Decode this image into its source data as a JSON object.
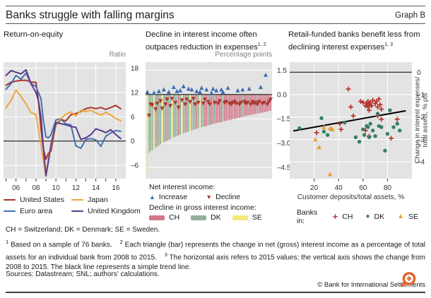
{
  "header": {
    "title": "Banks struggle with falling margins",
    "graph_label": "Graph B"
  },
  "panels": {
    "left": {
      "title": "Return-on-equity",
      "unit": "Ratio",
      "legend": [
        "United States",
        "Japan",
        "Euro area",
        "United Kingdom"
      ],
      "legend_color_keys": [
        "us_red",
        "japan_orange",
        "euro_blue",
        "uk_purple"
      ]
    },
    "middle": {
      "title_line1": "Decline in interest income often",
      "title_line2": "outpaces reduction in expenses",
      "title_sup": "1, 2",
      "unit": "Percentage points",
      "legend_net_title": "Net interest income:",
      "legend_increase": "Increase",
      "legend_decline": "Decline",
      "legend_gross_title": "Decline in gross interest income:",
      "legend_countries": [
        "CH",
        "DK",
        "SE"
      ]
    },
    "right": {
      "title_line1": "Retail-funded banks benefit less from",
      "title_line2": "declining interest expenses",
      "title_sup": "1, 3",
      "xlabel": "Customer deposits/total assets, %",
      "ylabel_line1": "Change in interest expenses/",
      "ylabel_line2": "total assets, % pts",
      "legend_prefix": "Banks in:",
      "legend": [
        "CH",
        "DK",
        "SE"
      ]
    }
  },
  "footer": {
    "abbr": "CH = Switzerland; DK = Denmark; SE = Sweden.",
    "fn1_marker": "1",
    "fn1": "Based on a sample of 76 banks.",
    "fn2_marker": "2",
    "fn2": "Each triangle (bar) represents the change in net (gross) interest income as a percentage of total assets for an individual bank from 2008 to 2015.",
    "fn3_marker": "3",
    "fn3": "The horizontal axis refers to 2015 values; the vertical axis shows the change from 2008 to 2015. The black line represents a simple trend line.",
    "sources": "Sources: Datastream; SNL; authors' calculations.",
    "copyright": "© Bank for International Settlements"
  },
  "colors": {
    "plot_bg": "#e3e3e3",
    "grid": "#ffffff",
    "axis": "#3c3c3c",
    "text": "#333333",
    "muted": "#7f7f7f",
    "us_red": "#a8352c",
    "euro_blue": "#4270b2",
    "japan_orange": "#eda63c",
    "uk_purple": "#5c3a8c",
    "bar_ch": "#d2798b",
    "bar_dk": "#91b19b",
    "bar_se": "#f4e87c",
    "tri_increase": "#3d6db5",
    "tri_decline": "#ab3a30",
    "scatter_ch": "#b5342c",
    "scatter_dk": "#338066",
    "scatter_se": "#e9a23b",
    "trend": "#000000",
    "zoom_icon": "#e8612c"
  },
  "chart_data": [
    {
      "type": "line",
      "name": "return-on-equity",
      "title": "Return-on-equity",
      "ylabel": "Ratio",
      "x_range": [
        2004.75,
        2017.0
      ],
      "y_range": [
        -9.3,
        19.5
      ],
      "x_gridlines": [
        2006,
        2008,
        2010,
        2012,
        2014,
        2016
      ],
      "x_ticks": [
        {
          "v": 2006,
          "label": "06"
        },
        {
          "v": 2008,
          "label": "08"
        },
        {
          "v": 2010,
          "label": "10"
        },
        {
          "v": 2012,
          "label": "12"
        },
        {
          "v": 2014,
          "label": "14"
        },
        {
          "v": 2016,
          "label": "16"
        }
      ],
      "x_minor_ticks": [
        2005,
        2006,
        2007,
        2008,
        2009,
        2010,
        2011,
        2012,
        2013,
        2014,
        2015,
        2016
      ],
      "y_ticks": [
        {
          "v": 18,
          "label": "18"
        },
        {
          "v": 12,
          "label": "12"
        },
        {
          "v": 6,
          "label": "6"
        },
        {
          "v": 0,
          "label": "0"
        },
        {
          "v": -6,
          "label": "–6"
        }
      ],
      "x": [
        2005,
        2005.5,
        2006,
        2006.5,
        2007,
        2007.5,
        2008,
        2008.25,
        2008.5,
        2008.75,
        2009,
        2009.25,
        2009.5,
        2010,
        2010.5,
        2011,
        2011.5,
        2012,
        2012.5,
        2013,
        2013.5,
        2014,
        2014.5,
        2015,
        2015.5,
        2016,
        2016.5
      ],
      "series": [
        {
          "name": "united-states",
          "label": "United States",
          "color_key": "us_red",
          "values": [
            13.8,
            14.5,
            14.8,
            15.0,
            15.0,
            14.6,
            14.5,
            10.0,
            3.0,
            -2.0,
            -4.5,
            -3.0,
            -2.5,
            4.0,
            5.3,
            5.0,
            6.5,
            6.8,
            7.3,
            8.0,
            8.3,
            8.0,
            8.3,
            7.8,
            8.3,
            8.8,
            8.0
          ]
        },
        {
          "name": "euro-area",
          "label": "Euro area",
          "color_key": "euro_blue",
          "values": [
            12.8,
            14.2,
            16.2,
            15.3,
            16.8,
            14.2,
            13.5,
            12.0,
            10.5,
            5.0,
            1.0,
            0.8,
            1.5,
            5.2,
            5.5,
            4.2,
            4.0,
            -1.2,
            -1.8,
            0.4,
            0.6,
            0.3,
            -1.3,
            1.2,
            2.0,
            2.6,
            2.4
          ]
        },
        {
          "name": "japan",
          "label": "Japan",
          "color_key": "japan_orange",
          "values": [
            8.2,
            10.0,
            12.6,
            11.0,
            9.2,
            7.0,
            6.6,
            3.0,
            -1.0,
            -5.0,
            -8.6,
            -4.0,
            -1.5,
            4.2,
            5.6,
            6.6,
            7.2,
            6.2,
            7.6,
            7.3,
            7.6,
            7.0,
            6.4,
            7.1,
            6.4,
            5.6,
            5.0
          ]
        },
        {
          "name": "united-kingdom",
          "label": "United Kingdom",
          "color_key": "uk_purple",
          "values": [
            16.2,
            17.4,
            17.0,
            16.6,
            17.6,
            14.2,
            12.0,
            10.0,
            6.0,
            -2.0,
            -8.6,
            -5.0,
            -1.0,
            4.6,
            4.3,
            4.0,
            3.6,
            3.4,
            0.4,
            0.8,
            1.6,
            3.0,
            2.6,
            2.1,
            2.8,
            1.6,
            0.6
          ]
        }
      ]
    },
    {
      "type": "bar-triangle",
      "name": "interest-income-decline",
      "ylabel": "Percentage points",
      "y_range": [
        -5.2,
        2.0
      ],
      "y_ticks": [
        {
          "v": 1.5,
          "label": "1.5"
        },
        {
          "v": 0.0,
          "label": "0.0"
        },
        {
          "v": -1.5,
          "label": "–1.5"
        },
        {
          "v": -3.0,
          "label": "–3.0"
        },
        {
          "v": -4.5,
          "label": "–4.5"
        }
      ],
      "bar_values": [
        -4.8,
        -3.6,
        -3.5,
        -3.45,
        -3.38,
        -3.3,
        -3.22,
        -3.15,
        -3.08,
        -3.02,
        -2.96,
        -2.9,
        -2.85,
        -2.8,
        -2.75,
        -2.7,
        -2.65,
        -2.6,
        -2.56,
        -2.52,
        -2.48,
        -2.44,
        -2.4,
        -2.36,
        -2.32,
        -2.28,
        -2.25,
        -2.22,
        -2.18,
        -2.15,
        -2.12,
        -2.08,
        -2.05,
        -2.02,
        -2.0,
        -1.97,
        -1.94,
        -1.91,
        -1.88,
        -1.85,
        -1.82,
        -1.8,
        -1.77,
        -1.74,
        -1.72,
        -1.7,
        -1.67,
        -1.64,
        -1.62,
        -1.6,
        -1.57,
        -1.55,
        -1.52,
        -1.5,
        -1.48,
        -1.45,
        -1.43,
        -1.4,
        -1.38,
        -1.35,
        -1.33,
        -1.3,
        -1.28,
        -1.26,
        -1.24,
        -1.22,
        -1.2,
        -1.18,
        -1.16,
        -1.14,
        -1.12,
        -1.1,
        -1.08,
        -1.05,
        -1.02,
        -1.0
      ],
      "bar_countries": [
        "SE",
        "DK",
        "DK",
        "DK",
        "SE",
        "DK",
        "CH",
        "DK",
        "DK",
        "SE",
        "DK",
        "DK",
        "CH",
        "DK",
        "DK",
        "SE",
        "DK",
        "DK",
        "DK",
        "CH",
        "DK",
        "SE",
        "DK",
        "DK",
        "CH",
        "DK",
        "SE",
        "DK",
        "DK",
        "DK",
        "CH",
        "DK",
        "SE",
        "DK",
        "DK",
        "CH",
        "CH",
        "DK",
        "CH",
        "CH",
        "CH",
        "DK",
        "CH",
        "CH",
        "CH",
        "CH",
        "DK",
        "CH",
        "CH",
        "CH",
        "CH",
        "CH",
        "CH",
        "CH",
        "CH",
        "CH",
        "CH",
        "CH",
        "DK",
        "CH",
        "CH",
        "CH",
        "CH",
        "CH",
        "CH",
        "CH",
        "CH",
        "DK",
        "CH",
        "CH",
        "CH",
        "CH",
        "CH",
        "CH",
        "CH",
        "CH"
      ],
      "net_values": [
        0.15,
        -1.3,
        -0.6,
        -0.65,
        0.1,
        -0.9,
        -0.55,
        0.2,
        -0.4,
        -0.85,
        0.3,
        -0.6,
        -0.3,
        0.15,
        -0.7,
        -0.25,
        0.45,
        -0.5,
        0.2,
        -0.8,
        0.25,
        -0.35,
        0.5,
        -0.6,
        -0.3,
        0.35,
        -0.45,
        0.3,
        -0.25,
        -0.6,
        0.2,
        -0.5,
        0.15,
        0.4,
        -0.55,
        -0.3,
        0.3,
        -0.45,
        -0.6,
        0.1,
        0.35,
        -0.5,
        0.25,
        -0.55,
        -0.4,
        0.3,
        0.15,
        -0.5,
        -0.45,
        0.4,
        -0.55,
        -0.6,
        -0.5,
        -0.45,
        -0.55,
        0.25,
        -0.6,
        -0.5,
        0.3,
        -0.45,
        -0.55,
        -0.5,
        0.35,
        -0.6,
        -0.45,
        -0.55,
        -0.5,
        -0.6,
        -0.45,
        0.45,
        -0.55,
        -0.5,
        1.2,
        -0.6,
        -0.45,
        -0.3
      ]
    },
    {
      "type": "scatter",
      "name": "retail-funding-scatter",
      "xlabel": "Customer deposits/total assets, %",
      "ylabel": "Change in interest expenses/ total assets, % pts",
      "x_range": [
        0,
        100
      ],
      "y_range": [
        -4.75,
        0.45
      ],
      "x_ticks": [
        {
          "v": 20,
          "label": "20"
        },
        {
          "v": 40,
          "label": "40"
        },
        {
          "v": 60,
          "label": "60"
        },
        {
          "v": 80,
          "label": "80"
        }
      ],
      "y_ticks": [
        {
          "v": 0,
          "label": "0"
        },
        {
          "v": -1,
          "label": "–1"
        },
        {
          "v": -2,
          "label": "–2"
        },
        {
          "v": -3,
          "label": "–3"
        },
        {
          "v": -4,
          "label": "–4"
        }
      ],
      "trend": {
        "x1": 3,
        "y1": -2.62,
        "x2": 95,
        "y2": -1.72
      },
      "series": [
        {
          "name": "CH",
          "marker": "plus",
          "color_key": "scatter_ch",
          "points": [
            [
              22,
              -2.7
            ],
            [
              41,
              -2.3
            ],
            [
              42,
              -2.55
            ],
            [
              48,
              -0.75
            ],
            [
              50,
              -1.55
            ],
            [
              52,
              -1.95
            ],
            [
              58,
              -1.3
            ],
            [
              60,
              -1.35
            ],
            [
              62,
              -1.5
            ],
            [
              62,
              -2.6
            ],
            [
              63,
              -1.4
            ],
            [
              64,
              -1.3
            ],
            [
              64,
              -1.55
            ],
            [
              65,
              -1.45
            ],
            [
              65,
              -1.7
            ],
            [
              65,
              -2.85
            ],
            [
              66,
              -1.35
            ],
            [
              67,
              -1.5
            ],
            [
              68,
              -1.25
            ],
            [
              70,
              -1.4
            ],
            [
              71,
              -1.3
            ],
            [
              72,
              -1.55
            ],
            [
              72,
              -1.95
            ],
            [
              73,
              -1.2
            ],
            [
              74,
              -1.45
            ],
            [
              75,
              -1.65
            ],
            [
              75,
              -2.1
            ],
            [
              83,
              -2.95
            ],
            [
              88,
              -2.1
            ]
          ]
        },
        {
          "name": "DK",
          "marker": "dot",
          "color_key": "scatter_dk",
          "points": [
            [
              8,
              -2.5
            ],
            [
              26,
              -2.05
            ],
            [
              28,
              -2.65
            ],
            [
              31,
              -2.8
            ],
            [
              34,
              -2.55
            ],
            [
              45,
              -2.25
            ],
            [
              54,
              -2.9
            ],
            [
              57,
              -3.1
            ],
            [
              60,
              -2.55
            ],
            [
              61,
              -2.8
            ],
            [
              63,
              -2.4
            ],
            [
              64,
              -2.45
            ],
            [
              65,
              -2.9
            ],
            [
              66,
              -2.3
            ],
            [
              68,
              -2.6
            ],
            [
              70,
              -2.85
            ],
            [
              72,
              -1.85
            ],
            [
              73,
              -2.4
            ],
            [
              75,
              -2.45
            ],
            [
              78,
              -3.5
            ],
            [
              80,
              -2.75
            ],
            [
              82,
              -1.7
            ],
            [
              85,
              -2.45
            ],
            [
              88,
              -2.3
            ],
            [
              90,
              -2.6
            ]
          ]
        },
        {
          "name": "SE",
          "marker": "triangle",
          "color_key": "scatter_se",
          "points": [
            [
              21,
              -3.0
            ],
            [
              24,
              -3.35
            ],
            [
              28,
              -2.45
            ],
            [
              33,
              -2.5
            ],
            [
              35,
              -2.55
            ],
            [
              33,
              -4.55
            ]
          ]
        }
      ]
    }
  ]
}
